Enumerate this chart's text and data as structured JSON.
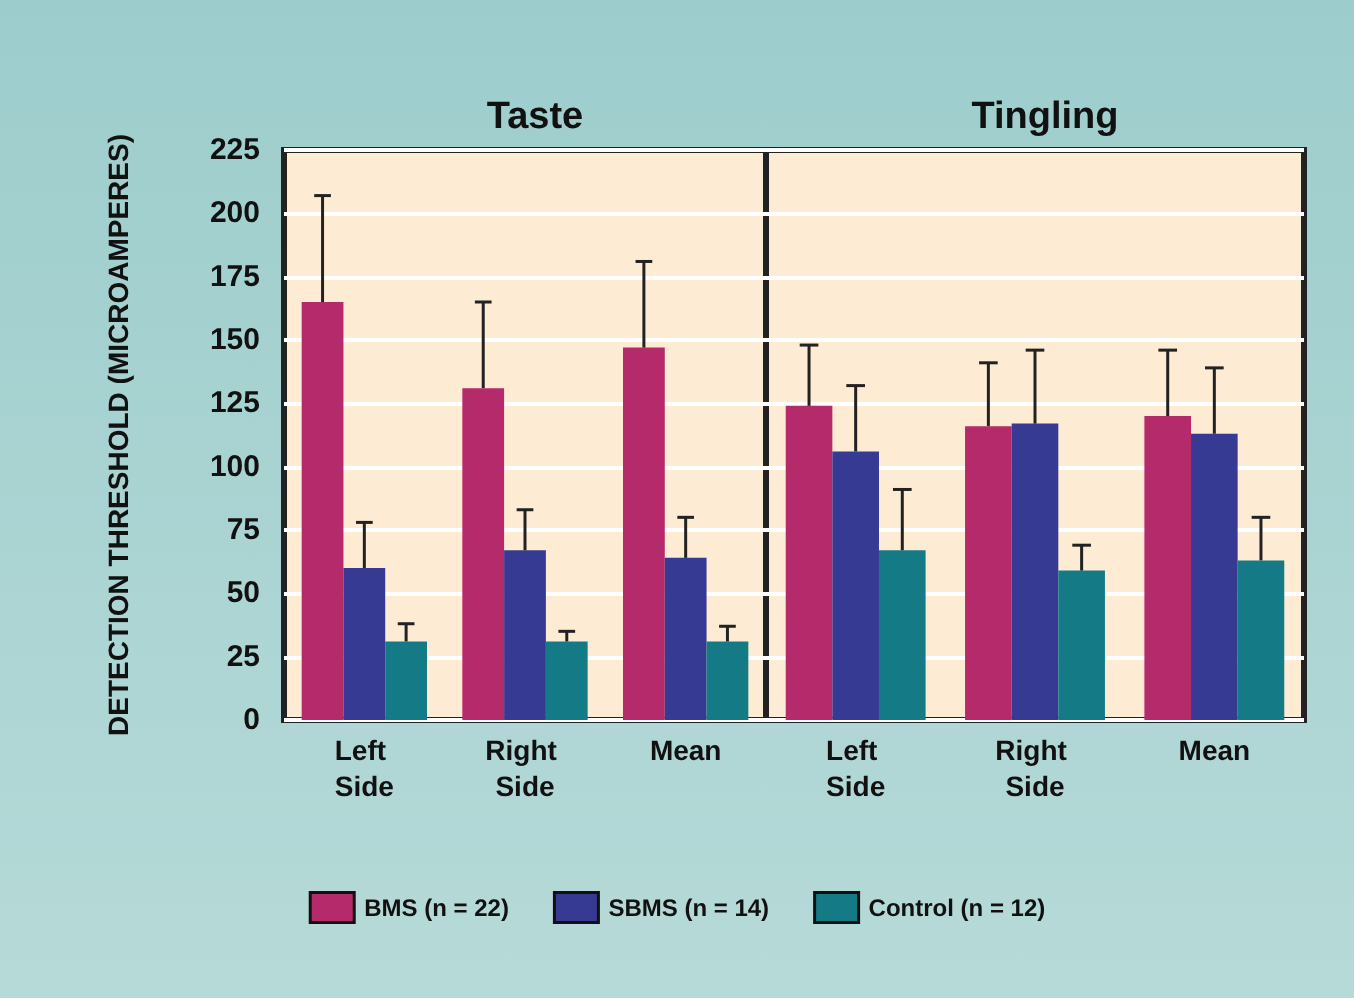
{
  "chart_data": [
    {
      "type": "bar",
      "title": "Taste",
      "ylabel": "DETECTION THRESHOLD (MICROAMPERES)",
      "categories": [
        "Left Side",
        "Right Side",
        "Mean"
      ],
      "ylim": [
        0,
        225
      ],
      "yticks": [
        0,
        25,
        50,
        75,
        100,
        125,
        150,
        175,
        200,
        225
      ],
      "grid": "y",
      "legend": "bottom",
      "series": [
        {
          "name": "BMS (n = 22)",
          "color": "#b52a6a",
          "values": [
            165,
            131,
            147
          ],
          "errors": [
            [
              165,
              207
            ],
            [
              131,
              165
            ],
            [
              147,
              181
            ]
          ]
        },
        {
          "name": "SBMS (n = 14)",
          "color": "#363a93",
          "values": [
            60,
            67,
            64
          ],
          "errors": [
            [
              60,
              78
            ],
            [
              67,
              83
            ],
            [
              64,
              80
            ]
          ]
        },
        {
          "name": "Control (n = 12)",
          "color": "#137a86",
          "values": [
            31,
            31,
            31
          ],
          "errors": [
            [
              31,
              38
            ],
            [
              31,
              35
            ],
            [
              31,
              37
            ]
          ]
        }
      ]
    },
    {
      "type": "bar",
      "title": "Tingling",
      "categories": [
        "Left Side",
        "Right Side",
        "Mean"
      ],
      "ylim": [
        0,
        225
      ],
      "yticks": [
        0,
        25,
        50,
        75,
        100,
        125,
        150,
        175,
        200,
        225
      ],
      "grid": "y",
      "tick_labels": "x",
      "series": [
        {
          "color": "#b52a6a",
          "values": [
            124,
            116,
            120
          ],
          "errors": [
            [
              124,
              148
            ],
            [
              116,
              141
            ],
            [
              120,
              146
            ]
          ]
        },
        {
          "color": "#363a93",
          "values": [
            106,
            117,
            113
          ],
          "errors": [
            [
              106,
              132
            ],
            [
              117,
              146
            ],
            [
              113,
              139
            ]
          ]
        },
        {
          "color": "#137a86",
          "values": [
            67,
            59,
            63
          ],
          "errors": [
            [
              67,
              91
            ],
            [
              59,
              69
            ],
            [
              63,
              80
            ]
          ]
        }
      ]
    }
  ]
}
